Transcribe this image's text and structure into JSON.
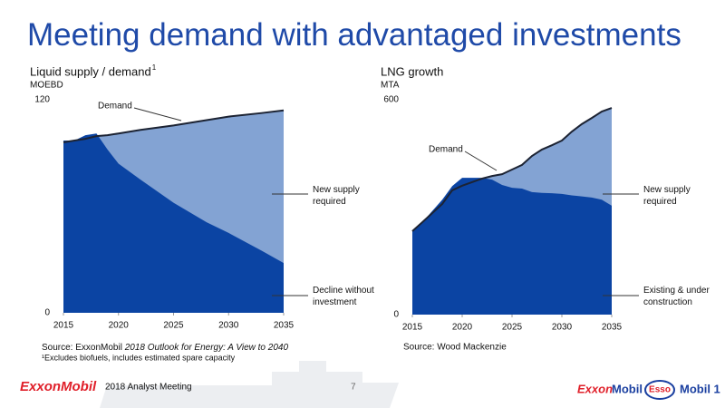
{
  "title": "Meeting demand with advantaged investments",
  "chart_data": [
    {
      "type": "area",
      "title": "Liquid supply / demand",
      "title_sup": "1",
      "unit": "MOEBD",
      "x": [
        2015,
        2016,
        2017,
        2018,
        2019,
        2020,
        2022,
        2025,
        2028,
        2030,
        2033,
        2035
      ],
      "xlim": [
        2015,
        2035
      ],
      "xticks": [
        2015,
        2020,
        2025,
        2030,
        2035
      ],
      "ylim": [
        0,
        120
      ],
      "yticks": [
        0,
        120
      ],
      "series": [
        {
          "name": "Demand",
          "kind": "line",
          "color": "#1c2333",
          "values": [
            96,
            97,
            98,
            99.5,
            100,
            101,
            103,
            105.5,
            108.5,
            110.5,
            112.5,
            114
          ]
        },
        {
          "name": "Decline without investment",
          "kind": "area",
          "color": "#0b44a3",
          "values": [
            97,
            97,
            100,
            101,
            92,
            84,
            75,
            62,
            51,
            45,
            35,
            28
          ]
        }
      ],
      "annotation": {
        "text": "New supply required",
        "color": "#83a3d3"
      },
      "source": "Source: ExxonMobil ",
      "source_italic": "2018 Outlook for Energy: A View to 2040",
      "footnote": "¹Excludes biofuels, includes estimated spare capacity"
    },
    {
      "type": "area",
      "title": "LNG growth",
      "unit": "MTA",
      "x": [
        2015,
        2016,
        2018,
        2019,
        2020,
        2022,
        2023,
        2024,
        2025,
        2026,
        2027,
        2028,
        2029,
        2030,
        2031,
        2032,
        2033,
        2034,
        2035
      ],
      "xlim": [
        2015,
        2035
      ],
      "xticks": [
        2015,
        2020,
        2025,
        2030,
        2035
      ],
      "ylim": [
        0,
        600
      ],
      "yticks": [
        0,
        600
      ],
      "series": [
        {
          "name": "Demand",
          "kind": "line",
          "color": "#1c2333",
          "values": [
            233,
            258,
            309,
            347,
            360,
            380,
            387,
            392,
            405,
            418,
            443,
            461,
            473,
            486,
            511,
            532,
            549,
            567,
            577
          ]
        },
        {
          "name": "Existing & under construction",
          "kind": "area",
          "color": "#0b44a3",
          "values": [
            233,
            258,
            321,
            359,
            382,
            382,
            377,
            362,
            354,
            352,
            342,
            340,
            339,
            337,
            333,
            330,
            327,
            321,
            304
          ]
        }
      ],
      "annotation": {
        "text": "New supply required",
        "color": "#83a3d3"
      },
      "source": "Source: Wood Mackenzie"
    }
  ],
  "footer": {
    "logo": "ExxonMobil",
    "event": "2018 Analyst Meeting",
    "page": "7",
    "brands": [
      "Exxon",
      "Mobil",
      "Esso",
      "Mobil 1"
    ]
  }
}
